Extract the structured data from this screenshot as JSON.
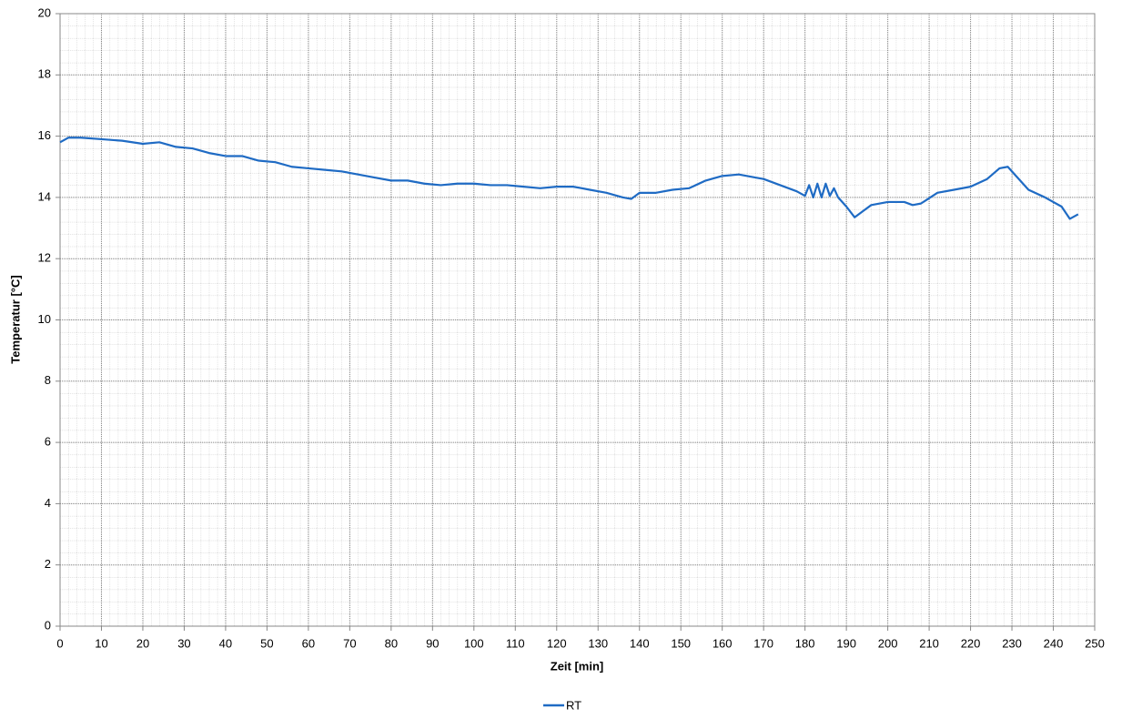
{
  "chart_data": {
    "type": "line",
    "x_label": "Zeit [min]",
    "y_label": "Temperatur [°C]",
    "x": [
      0,
      2,
      5,
      10,
      15,
      20,
      24,
      28,
      32,
      36,
      40,
      44,
      48,
      52,
      56,
      60,
      64,
      68,
      72,
      76,
      80,
      84,
      88,
      92,
      96,
      100,
      104,
      108,
      112,
      116,
      120,
      124,
      128,
      132,
      136,
      138,
      140,
      144,
      148,
      152,
      156,
      160,
      164,
      168,
      170,
      174,
      178,
      180,
      181,
      182,
      183,
      184,
      185,
      186,
      187,
      188,
      190,
      192,
      194,
      196,
      200,
      204,
      206,
      208,
      212,
      216,
      220,
      224,
      227,
      229,
      231,
      234,
      238,
      242,
      244,
      246
    ],
    "series": [
      {
        "name": "RT",
        "color": "#1f6bc4",
        "values": [
          15.8,
          15.95,
          15.95,
          15.9,
          15.85,
          15.75,
          15.8,
          15.65,
          15.6,
          15.45,
          15.35,
          15.35,
          15.2,
          15.15,
          15.0,
          14.95,
          14.9,
          14.85,
          14.75,
          14.65,
          14.55,
          14.55,
          14.45,
          14.4,
          14.45,
          14.45,
          14.4,
          14.4,
          14.35,
          14.3,
          14.35,
          14.35,
          14.25,
          14.15,
          14.0,
          13.95,
          14.15,
          14.15,
          14.25,
          14.3,
          14.55,
          14.7,
          14.75,
          14.65,
          14.6,
          14.4,
          14.2,
          14.05,
          14.4,
          14.0,
          14.45,
          14.0,
          14.45,
          14.05,
          14.3,
          14.0,
          13.7,
          13.35,
          13.55,
          13.75,
          13.85,
          13.85,
          13.75,
          13.8,
          14.15,
          14.25,
          14.35,
          14.6,
          14.95,
          15.0,
          14.7,
          14.25,
          14.0,
          13.7,
          13.3,
          13.45
        ]
      }
    ],
    "xlim": [
      0,
      250
    ],
    "xticks": [
      0,
      10,
      20,
      30,
      40,
      50,
      60,
      70,
      80,
      90,
      100,
      110,
      120,
      130,
      140,
      150,
      160,
      170,
      180,
      190,
      200,
      210,
      220,
      230,
      240,
      250
    ],
    "ylim": [
      0,
      20
    ],
    "yticks": [
      0,
      2,
      4,
      6,
      8,
      10,
      12,
      14,
      16,
      18,
      20
    ],
    "grid": true,
    "minor_grid": true,
    "legend": "bottom"
  }
}
